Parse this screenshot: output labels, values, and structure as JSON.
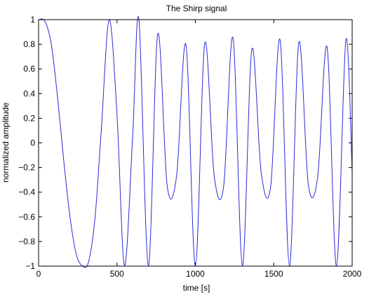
{
  "chart_data": {
    "type": "line",
    "title": "The Shirp signal",
    "xlabel": "time [s]",
    "ylabel": "normalized amplitude",
    "xlim": [
      0,
      2000
    ],
    "ylim": [
      -1,
      1
    ],
    "xticks": [
      0,
      500,
      1000,
      1500,
      2000
    ],
    "xtick_labels": [
      "0",
      "500",
      "1000",
      "1500",
      "2000"
    ],
    "yticks": [
      1,
      0.8,
      0.6,
      0.4,
      0.2,
      0,
      -0.2,
      -0.4,
      -0.6,
      -0.8,
      -1
    ],
    "ytick_labels": [
      "1",
      "0.8",
      "0.6",
      "0.4",
      "0.2",
      "0",
      "−0.2",
      "−0.4",
      "−0.6",
      "−0.8",
      "−1"
    ],
    "grid": false,
    "legend": "none",
    "series_color": "#2b2bd6",
    "series": [
      {
        "x": [
          0,
          40,
          80,
          120,
          160,
          200,
          240,
          280,
          318,
          360,
          400,
          450,
          500,
          548,
          600,
          640,
          700,
          760,
          820,
          880,
          940,
          1000,
          1060,
          1120,
          1180,
          1240,
          1300,
          1360,
          1420,
          1480,
          1540,
          1600,
          1660,
          1720,
          1780,
          1840,
          1900,
          1960,
          2000
        ],
        "y": [
          1,
          0.988,
          0.809,
          0.382,
          -0.137,
          -0.598,
          -0.902,
          -0.999,
          -0.969,
          -0.608,
          0.105,
          0.999,
          0.234,
          -0.995,
          0.054,
          1.0,
          -0.995,
          0.883,
          -0.345,
          -0.269,
          0.796,
          -1.0,
          0.809,
          -0.266,
          -0.356,
          0.852,
          -0.996,
          0.758,
          -0.244,
          -0.357,
          0.837,
          -0.998,
          0.815,
          -0.333,
          -0.277,
          0.777,
          -1.0,
          0.837,
          -0.233
        ]
      }
    ]
  }
}
